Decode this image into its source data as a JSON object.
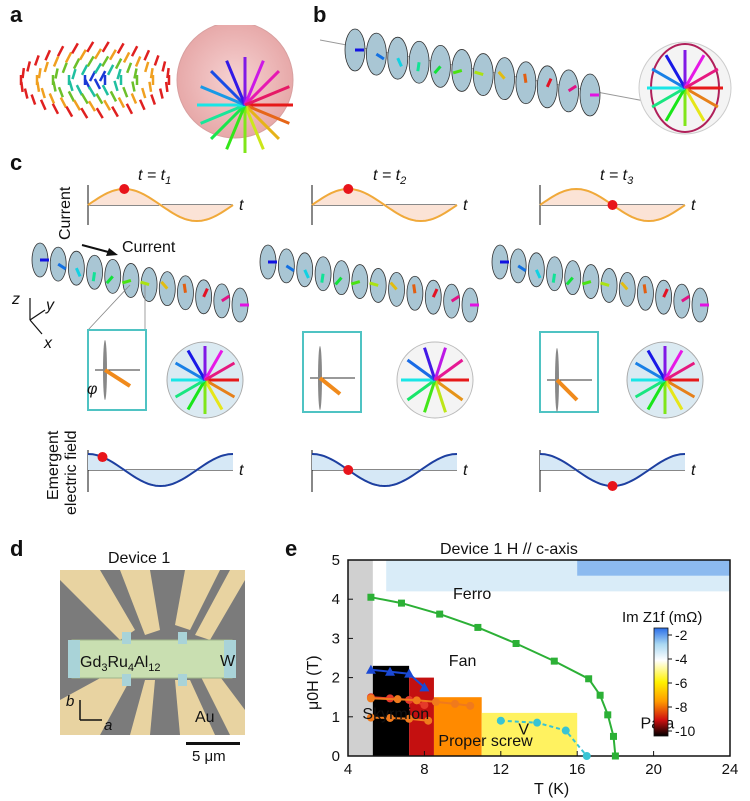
{
  "panels": {
    "a": "a",
    "b": "b",
    "c": "c",
    "d": "d",
    "e": "e"
  },
  "panel_c": {
    "t1": "t = t",
    "t1_sub": "1",
    "t2": "t = t",
    "t2_sub": "2",
    "t3": "t = t",
    "t3_sub": "3",
    "current_ylabel": "Current",
    "current_arrow_label": "Current",
    "time_axis": "t",
    "phi": "φ",
    "axes_z": "z",
    "axes_y": "y",
    "axes_x": "x",
    "emergent_line1": "Emergent",
    "emergent_line2": "electric field"
  },
  "panel_d": {
    "title": "Device 1",
    "material_base": "Gd",
    "material_sub1": "3",
    "material_mid1": "Ru",
    "material_sub2": "4",
    "material_mid2": "Al",
    "material_sub3": "12",
    "w_label": "W",
    "au_label": "Au",
    "axis_b": "b",
    "axis_a": "a",
    "scale_label": "5 μm"
  },
  "colors": {
    "ellipse_fill": "#a9c6d4",
    "sine_orange": "#f0a93a",
    "sine_blue": "#1d3fa0",
    "marker_red": "#e8141b",
    "teal_box": "#4fc3c3",
    "green_line": "#2cb036",
    "orange_line": "#f07a1c",
    "red_line": "#e53a2a",
    "blue_tri": "#1b49d4",
    "cyan_line": "#38c4d4",
    "device_green": "#c9dfb1",
    "device_gold": "#e8d3a1"
  },
  "chart_data": {
    "type": "scatter",
    "title": "Device 1    H // c-axis",
    "xlabel": "T (K)",
    "ylabel": "μ0H (T)",
    "xlim": [
      4,
      24
    ],
    "ylim": [
      0,
      5
    ],
    "xticks": [
      "4",
      "8",
      "12",
      "16",
      "20",
      "24"
    ],
    "yticks": [
      "0",
      "1",
      "2",
      "3",
      "4",
      "5"
    ],
    "colorbar": {
      "label": "Im Z1f (mΩ)",
      "ticks": [
        "-2",
        "-4",
        "-6",
        "-8",
        "-10"
      ],
      "range": [
        -10,
        -1
      ]
    },
    "regions": [
      "Ferro",
      "Fan",
      "Skyrmion",
      "V",
      "Proper screw",
      "Para"
    ],
    "series": [
      {
        "name": "Ferro–Fan",
        "color": "#2cb036",
        "x": [
          5.2,
          6.8,
          8.8,
          10.8,
          12.8,
          14.8,
          16.6,
          17.2,
          17.6,
          17.9,
          18.0
        ],
        "y": [
          4.05,
          3.9,
          3.62,
          3.28,
          2.87,
          2.42,
          1.97,
          1.55,
          1.05,
          0.5,
          0.0
        ]
      },
      {
        "name": "Fan–Skyrmion upper",
        "color": "#1b49d4",
        "x": [
          5.2,
          6.2,
          7.2,
          8.0
        ],
        "y": [
          2.2,
          2.15,
          2.1,
          1.75
        ]
      },
      {
        "name": "Skyrmion lower",
        "color": "#e53a2a",
        "x": [
          5.2,
          6.2,
          7.2,
          8.0
        ],
        "y": [
          1.5,
          1.47,
          1.43,
          1.3
        ]
      },
      {
        "name": "Proper screw upper",
        "color": "#f07a1c",
        "x": [
          5.2,
          6.6,
          7.6,
          8.6,
          9.6,
          10.4
        ],
        "y": [
          1.47,
          1.45,
          1.42,
          1.38,
          1.33,
          1.28
        ]
      },
      {
        "name": "Proper screw lower",
        "color": "#f07a1c",
        "x": [
          5.2,
          6.2,
          7.2,
          8.2
        ],
        "y": [
          0.98,
          0.97,
          0.95,
          0.9
        ]
      },
      {
        "name": "V boundary",
        "color": "#38c4d4",
        "x": [
          12.0,
          13.9,
          15.4,
          16.5
        ],
        "y": [
          0.9,
          0.85,
          0.65,
          0.0
        ]
      }
    ]
  }
}
